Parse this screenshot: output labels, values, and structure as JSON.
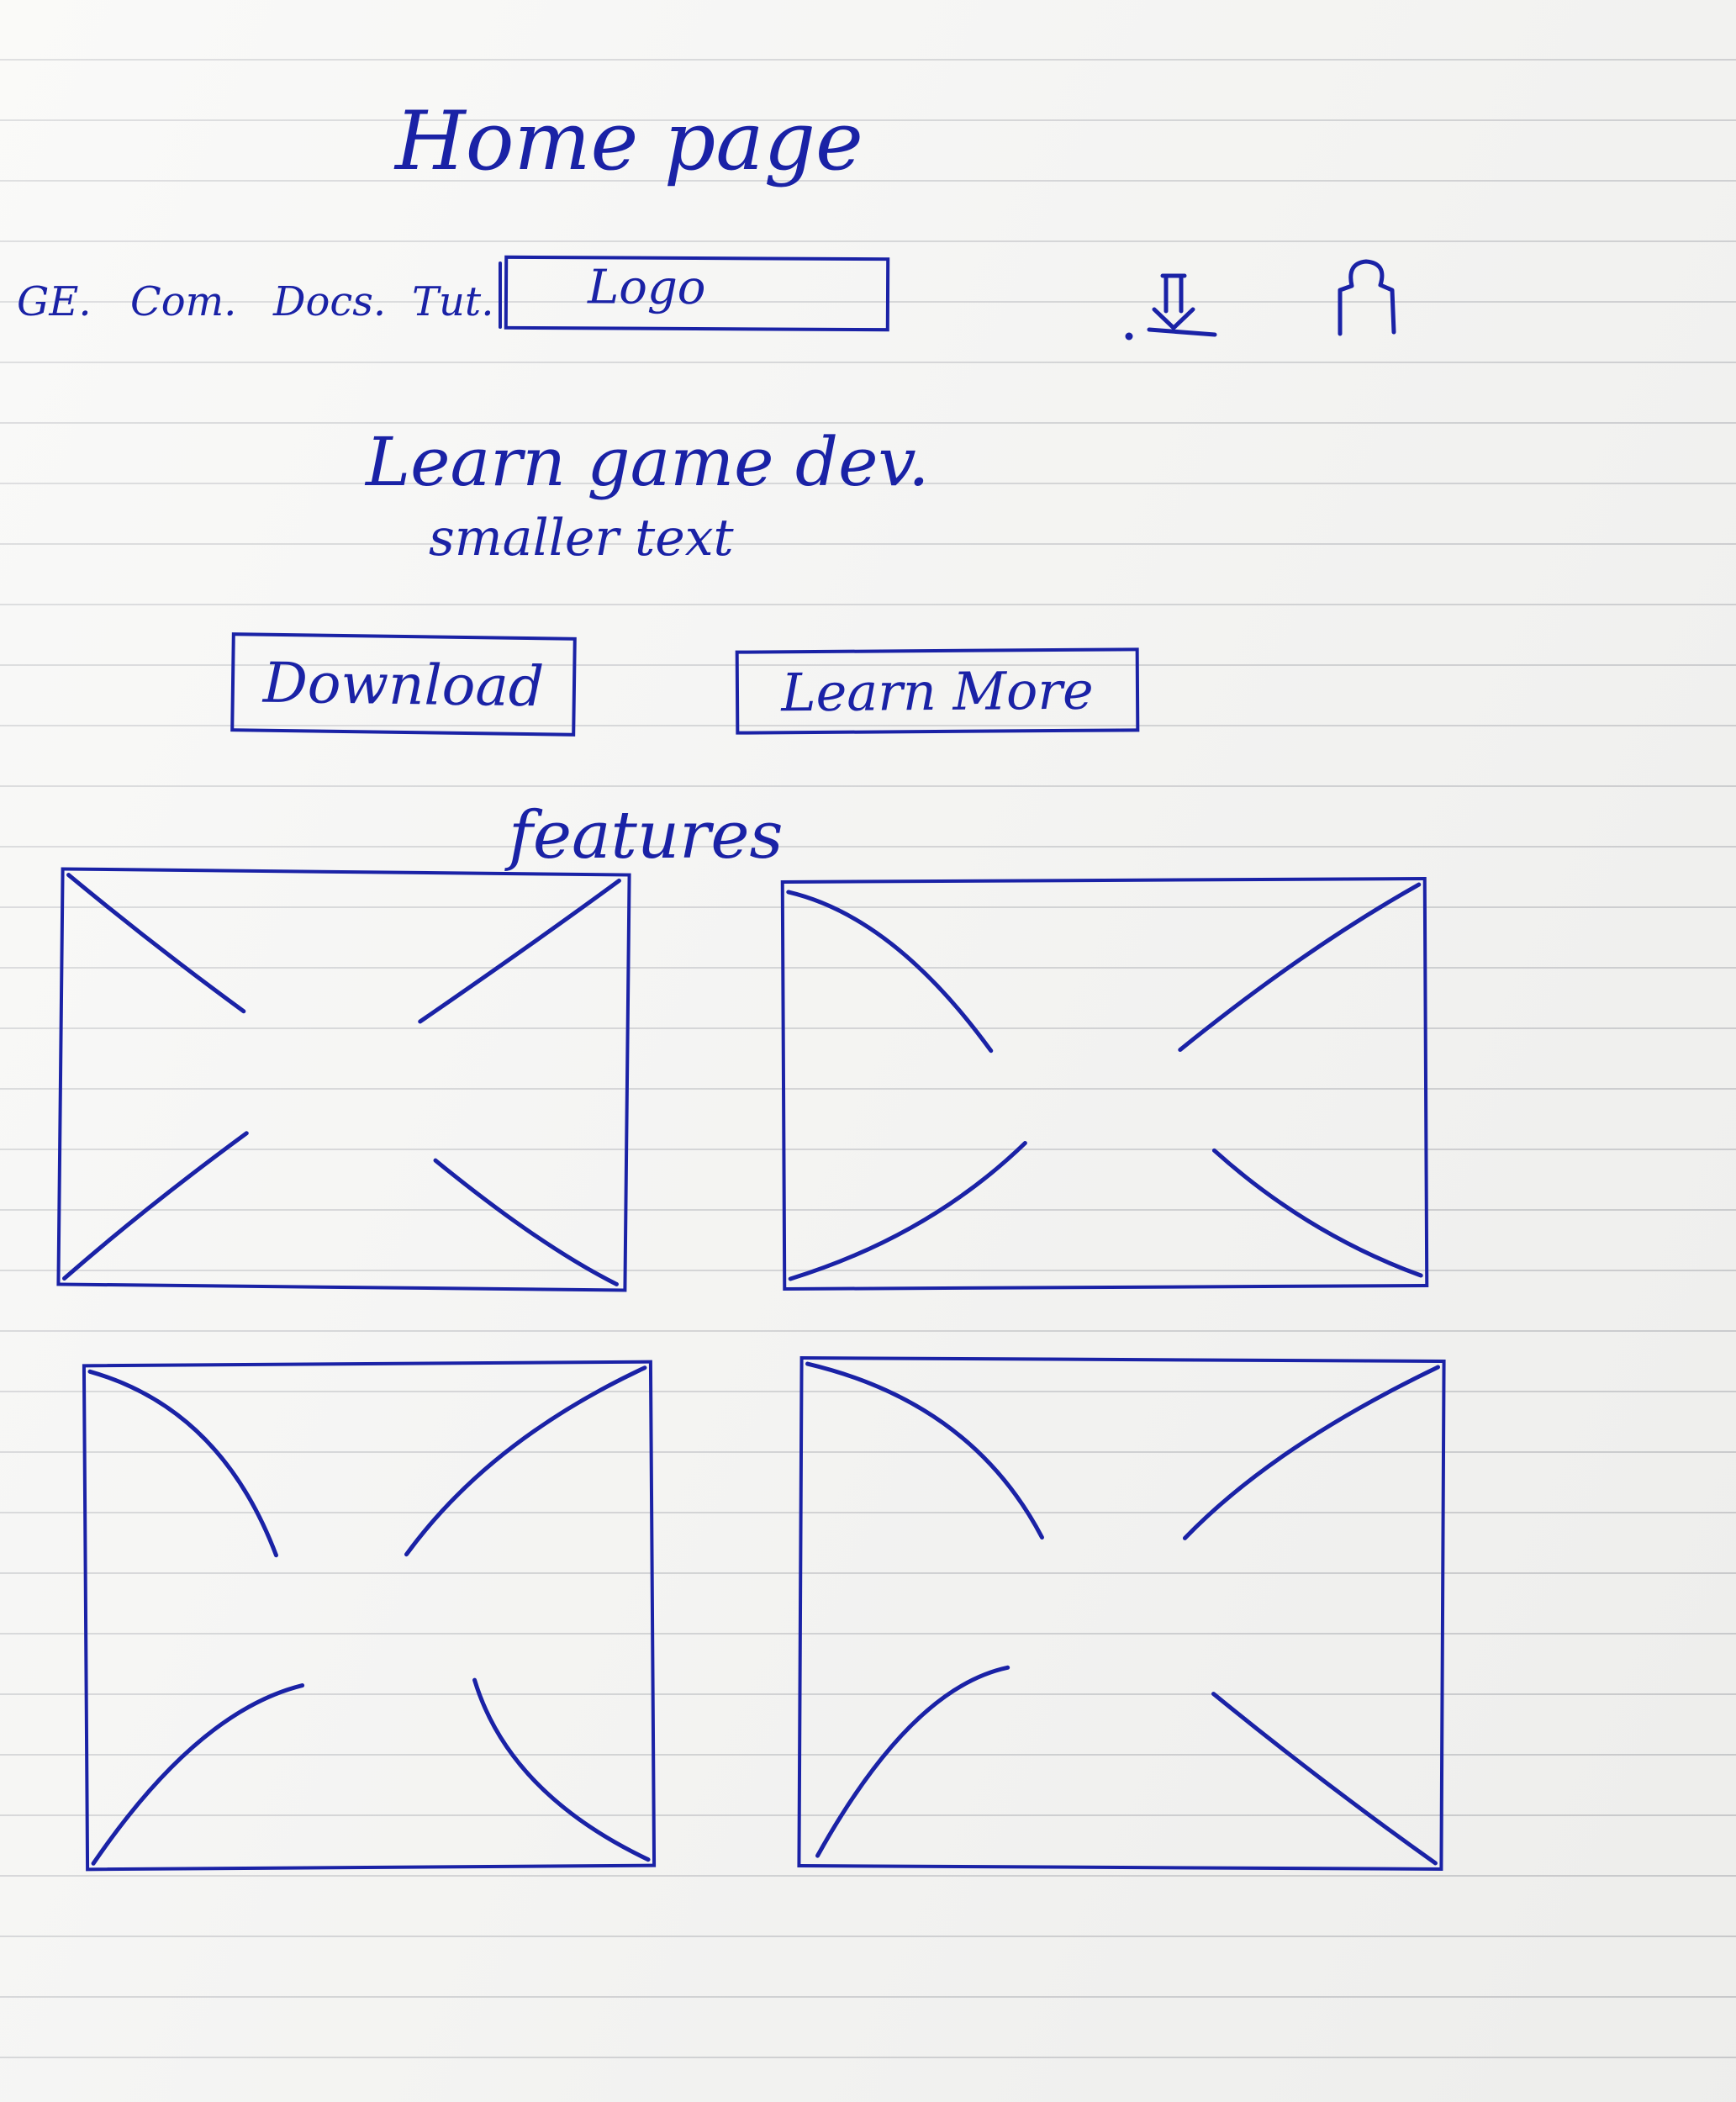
{
  "page": {
    "title": "Home page"
  },
  "nav": {
    "items": [
      {
        "label": "GE."
      },
      {
        "label": "Com."
      },
      {
        "label": "Docs."
      },
      {
        "label": "Tut."
      }
    ]
  },
  "logo": {
    "label": "Logo"
  },
  "header_icons": {
    "download_icon": "download-arrow-icon",
    "account_icon": "user-icon"
  },
  "hero": {
    "headline": "Learn game dev.",
    "subtitle": "smaller text",
    "download_button": "Download",
    "learn_more_button": "Learn More"
  },
  "features": {
    "heading": "features",
    "cards": [
      {
        "type": "image-placeholder"
      },
      {
        "type": "image-placeholder"
      },
      {
        "type": "image-placeholder"
      },
      {
        "type": "image-placeholder"
      }
    ]
  },
  "colors": {
    "ink": "#1a22a6",
    "paper": "#f7f7f5",
    "rule_lines": "#cfd0d2"
  }
}
